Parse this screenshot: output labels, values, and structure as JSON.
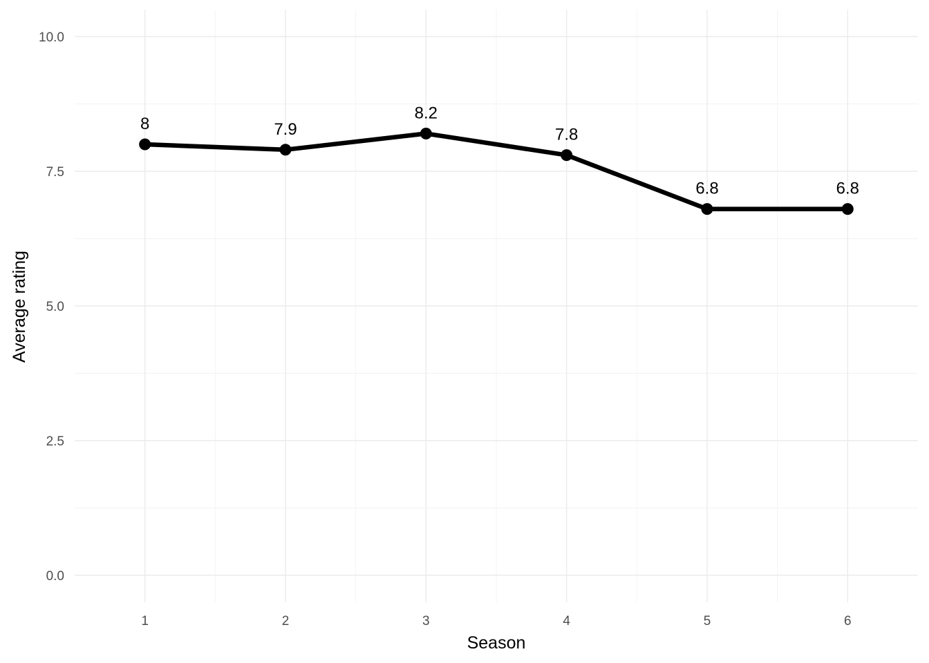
{
  "chart_data": {
    "type": "line",
    "x": [
      1,
      2,
      3,
      4,
      5,
      6
    ],
    "values": [
      8.0,
      7.9,
      8.2,
      7.8,
      6.8,
      6.8
    ],
    "point_labels": [
      "8",
      "7.9",
      "8.2",
      "7.8",
      "6.8",
      "6.8"
    ],
    "xlabel": "Season",
    "ylabel": "Average rating",
    "xlim": [
      0.5,
      6.5
    ],
    "ylim": [
      -0.5,
      10.5
    ],
    "x_ticks": [
      1,
      2,
      3,
      4,
      5,
      6
    ],
    "x_tick_labels": [
      "1",
      "2",
      "3",
      "4",
      "5",
      "6"
    ],
    "y_ticks": [
      0,
      2.5,
      5,
      7.5,
      10
    ],
    "y_tick_labels": [
      "0.0",
      "2.5",
      "5.0",
      "7.5",
      "10.0"
    ],
    "grid": true,
    "legend": "none",
    "line_color": "#000000",
    "point_color": "#000000",
    "background_color": "#ffffff",
    "grid_color": "#ebebeb"
  }
}
